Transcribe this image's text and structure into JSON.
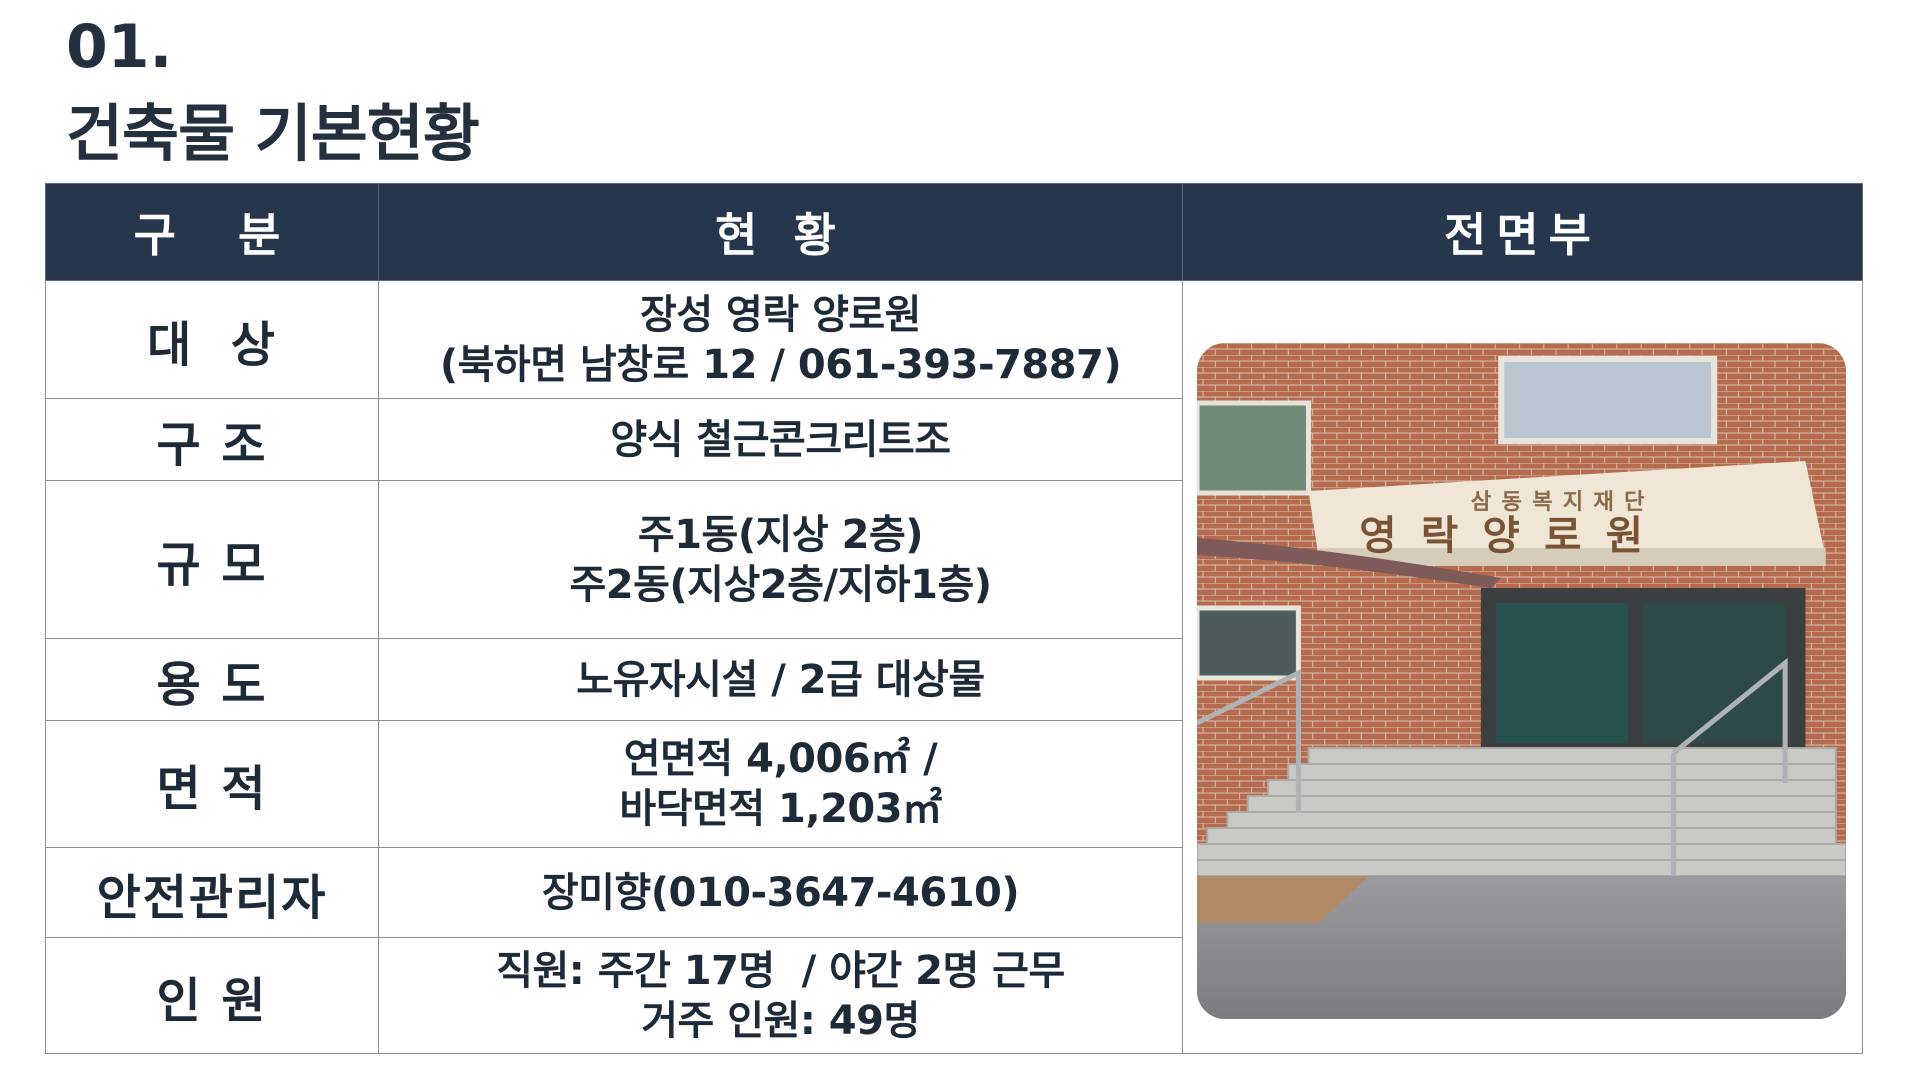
{
  "heading": {
    "number": "01.",
    "title": "건축물 기본현황"
  },
  "table": {
    "headers": [
      "구  분",
      "현 황",
      "전면부"
    ],
    "rows": [
      {
        "label": "대  상",
        "lines": [
          "장성 영락 양로원",
          "(북하면 남창로 12 / 061-393-7887)"
        ]
      },
      {
        "label": "구 조",
        "lines": [
          "양식 철근콘크리트조"
        ]
      },
      {
        "label": "규 모",
        "lines": [
          "주1동(지상 2층)",
          "주2동(지상2층/지하1층)"
        ]
      },
      {
        "label": "용 도",
        "lines": [
          "노유자시설 / 2급 대상물"
        ]
      },
      {
        "label": "면 적",
        "lines": [
          "연면적 4,006㎡ /",
          "바닥면적 1,203㎡"
        ]
      },
      {
        "label": "안전관리자",
        "lines": [
          "장미향(010-3647-4610)"
        ]
      },
      {
        "label": "인 원",
        "lines": [
          "직원: 주간 17명  / 야간 2명 근무",
          "거주 인원: 49명"
        ]
      }
    ],
    "photo": {
      "sign_top": "삼동복지재단",
      "sign_main": "영락양로원"
    }
  },
  "colors": {
    "header_bg": "#26364c",
    "header_text": "#ffffff",
    "text": "#1e2a38",
    "border": "#8a8f96"
  }
}
